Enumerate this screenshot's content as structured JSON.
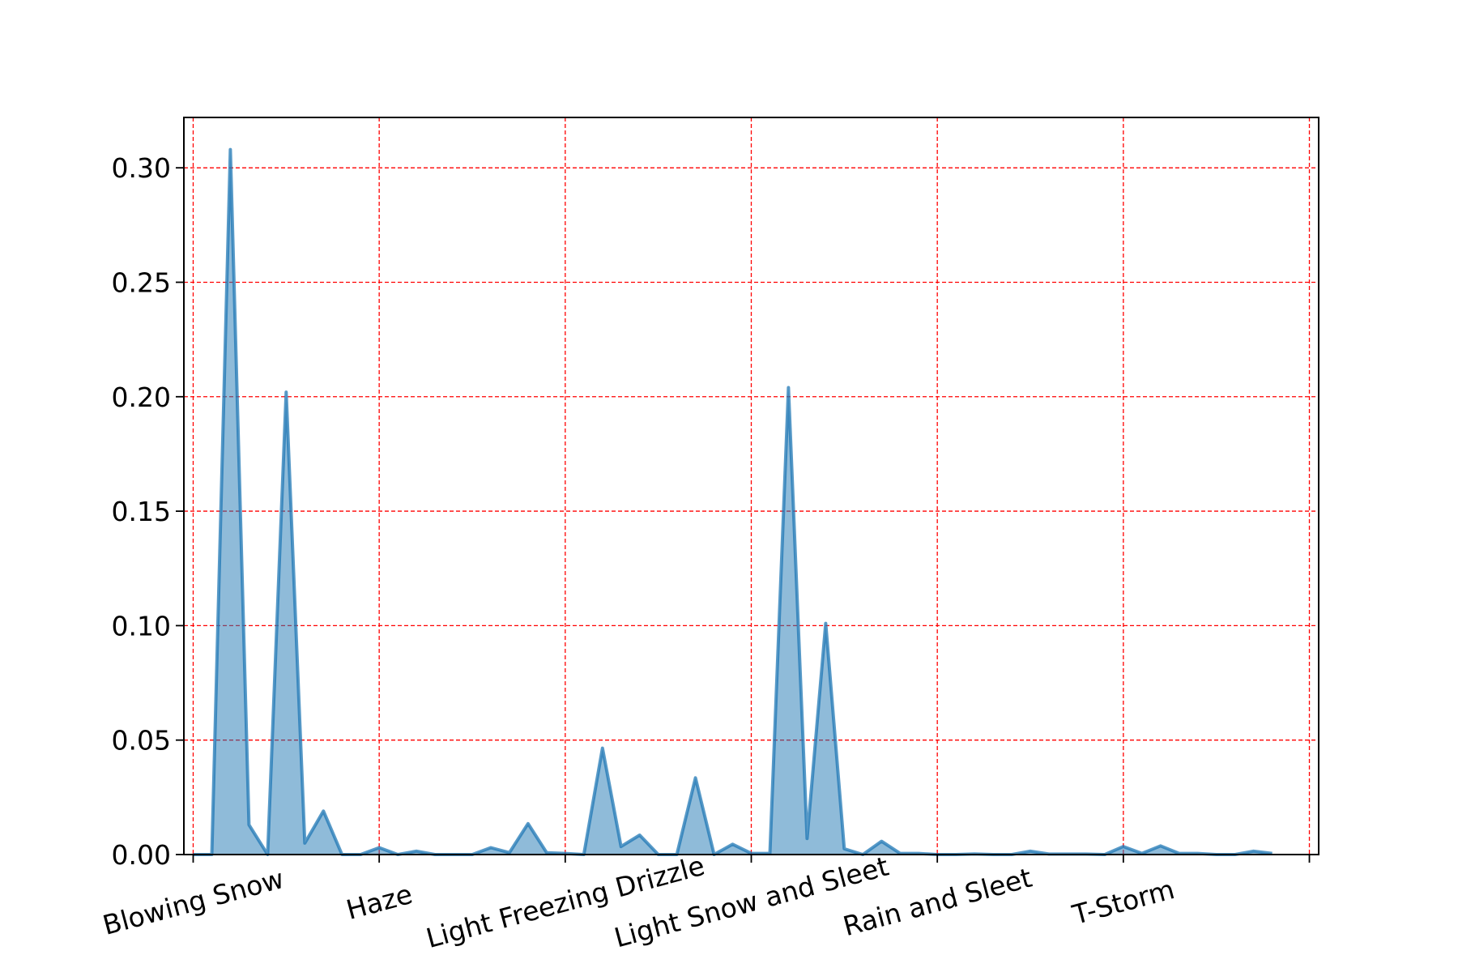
{
  "chart_data": {
    "type": "area",
    "title": "",
    "xlabel": "",
    "ylabel": "",
    "x_tick_labels": [
      "Blowing Snow",
      "Haze",
      "Light Freezing Drizzle",
      "Light Snow and Sleet",
      "Rain and Sleet",
      "T-Storm"
    ],
    "y_tick_labels": [
      "0.00",
      "0.05",
      "0.10",
      "0.15",
      "0.20",
      "0.25",
      "0.30"
    ],
    "y_ticks": [
      0,
      0.05,
      0.1,
      0.15,
      0.2,
      0.25,
      0.3
    ],
    "ylim": [
      0,
      0.322
    ],
    "xlim": [
      -0.5,
      60.5
    ],
    "x_tick_positions": [
      0,
      10,
      20,
      30,
      40,
      50,
      60
    ],
    "grid": true,
    "grid_color": "#ff0000",
    "series": [
      {
        "color": "#1f77b4",
        "fill_color": "#1f77b4",
        "values": [
          0,
          0,
          0.308,
          0.013,
          0,
          0.202,
          0.005,
          0.019,
          0,
          0,
          0.003,
          0,
          0.0015,
          0,
          0,
          0,
          0.003,
          0.0008,
          0.0135,
          0.0008,
          0.0005,
          0,
          0.0465,
          0.0035,
          0.0085,
          0,
          0,
          0.0335,
          0,
          0.0045,
          0.0005,
          0.0005,
          0.204,
          0.007,
          0.101,
          0.0025,
          0,
          0.0058,
          0.0005,
          0.0005,
          0,
          0,
          0.0003,
          0,
          0,
          0.0015,
          0.0002,
          0.0002,
          0.0002,
          0,
          0.0035,
          0.0005,
          0.0038,
          0.0005,
          0.0005,
          0,
          0,
          0.0015,
          0.0005
        ]
      }
    ]
  }
}
